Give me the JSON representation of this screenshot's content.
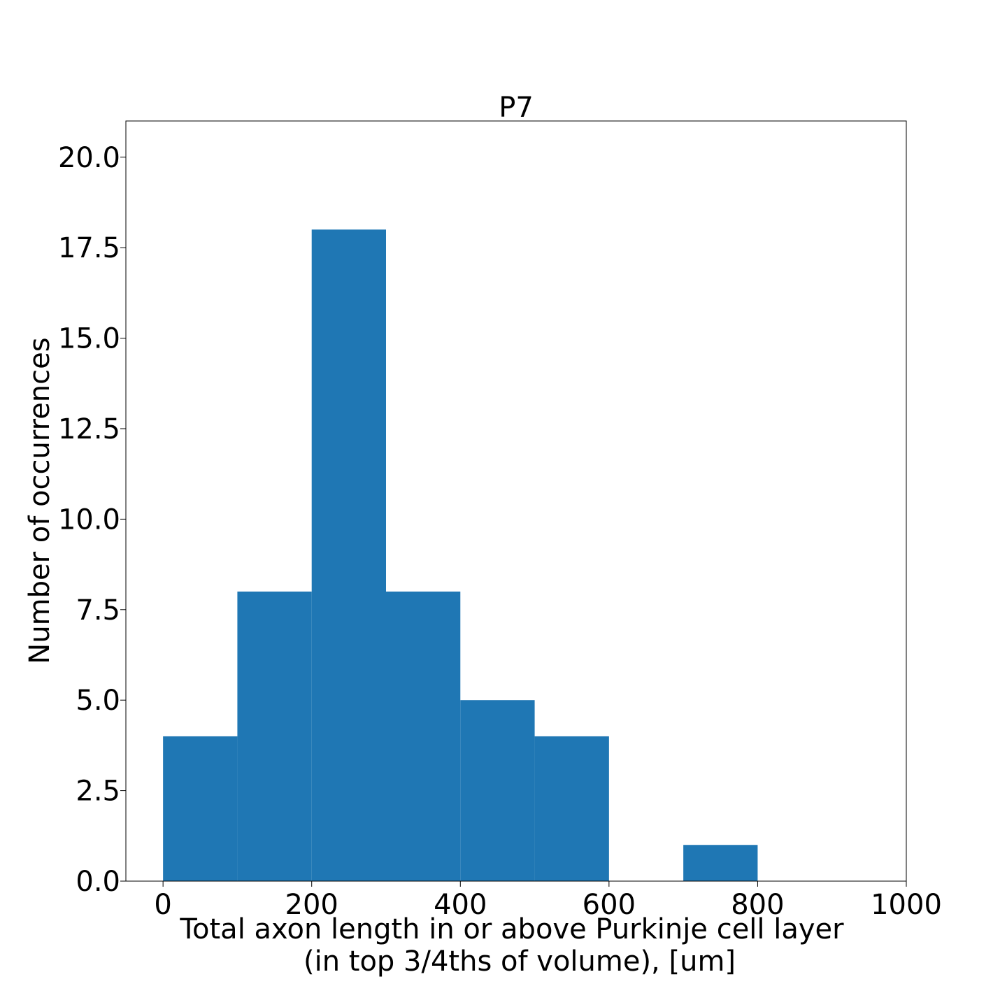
{
  "chart_data": {
    "type": "bar",
    "title": "P7",
    "xlabel_lines": [
      "Total axon length in or above Purkinje cell layer",
      "(in top 3/4ths of volume), [um]"
    ],
    "ylabel": "Number of occurrences",
    "bins": [
      {
        "x0": 0,
        "x1": 100,
        "count": 4
      },
      {
        "x0": 100,
        "x1": 200,
        "count": 8
      },
      {
        "x0": 200,
        "x1": 300,
        "count": 18
      },
      {
        "x0": 300,
        "x1": 400,
        "count": 8
      },
      {
        "x0": 400,
        "x1": 500,
        "count": 5
      },
      {
        "x0": 500,
        "x1": 600,
        "count": 4
      },
      {
        "x0": 600,
        "x1": 700,
        "count": 0
      },
      {
        "x0": 700,
        "x1": 800,
        "count": 1
      }
    ],
    "xlim": [
      -50,
      1000
    ],
    "ylim": [
      0,
      21
    ],
    "x_ticks": [
      0,
      200,
      400,
      600,
      800,
      1000
    ],
    "x_tick_labels": [
      "0",
      "200",
      "400",
      "600",
      "800",
      "1000"
    ],
    "y_ticks": [
      0,
      2.5,
      5,
      7.5,
      10,
      12.5,
      15,
      17.5,
      20
    ],
    "y_tick_labels": [
      "0.0",
      "2.5",
      "5.0",
      "7.5",
      "10.0",
      "12.5",
      "15.0",
      "17.5",
      "20.0"
    ],
    "bar_color": "#1f77b4",
    "grid": false,
    "legend": false
  }
}
